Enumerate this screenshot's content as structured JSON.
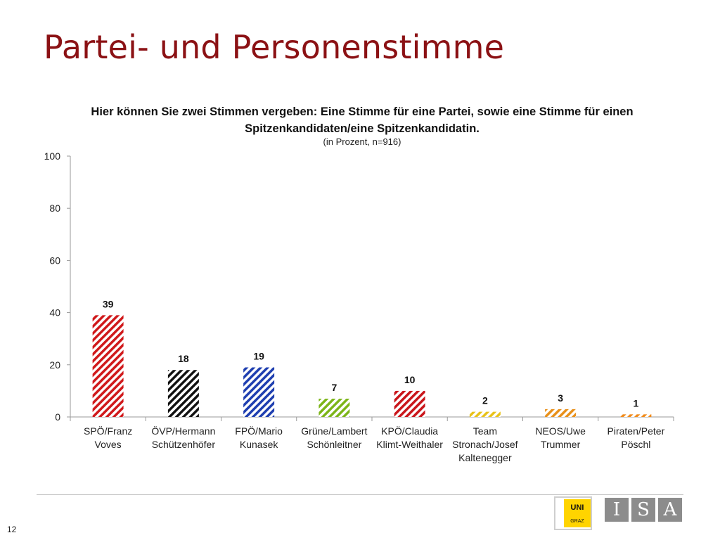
{
  "slide": {
    "title": "Partei- und Personenstimme",
    "page_number": "12"
  },
  "logos": {
    "uni_text": "UNI",
    "uni_sub": "GRAZ",
    "isa_letters": [
      "I",
      "S",
      "A"
    ]
  },
  "colors": {
    "title": "#8b1114",
    "isa_box": "#8c8c8c",
    "uni_yellow": "#ffd400"
  },
  "chart_data": {
    "type": "bar",
    "title": "Hier können Sie zwei Stimmen vergeben: Eine Stimme für eine Partei, sowie eine Stimme für einen Spitzenkandidaten/eine Spitzenkandidatin.",
    "title_lines": [
      "Hier können Sie zwei Stimmen vergeben: Eine Stimme für eine Partei, sowie eine Stimme für einen",
      "Spitzenkandidaten/eine Spitzenkandidatin."
    ],
    "subtitle": "(in Prozent, n=916)",
    "xlabel": "",
    "ylabel": "",
    "ylim": [
      0,
      100
    ],
    "yticks": [
      0,
      20,
      40,
      60,
      80,
      100
    ],
    "grid": false,
    "legend": "none",
    "categories": [
      [
        "SPÖ/Franz",
        "Voves"
      ],
      [
        "ÖVP/Hermann",
        "Schützenhöfer"
      ],
      [
        "FPÖ/Mario",
        "Kunasek"
      ],
      [
        "Grüne/Lambert",
        "Schönleitner"
      ],
      [
        "KPÖ/Claudia",
        "Klimt-Weithaler"
      ],
      [
        "Team",
        "Stronach/Josef",
        "Kaltenegger"
      ],
      [
        "NEOS/Uwe",
        "Trummer"
      ],
      [
        "Piraten/Peter",
        "Pöschl"
      ]
    ],
    "values": [
      39,
      18,
      19,
      7,
      10,
      2,
      3,
      1
    ],
    "bar_colors": [
      "#d0191b",
      "#111111",
      "#1f3fb0",
      "#7cb518",
      "#c9151a",
      "#e8c21a",
      "#e8901a",
      "#f08a1a"
    ],
    "pattern": "diagonal-hatch"
  }
}
